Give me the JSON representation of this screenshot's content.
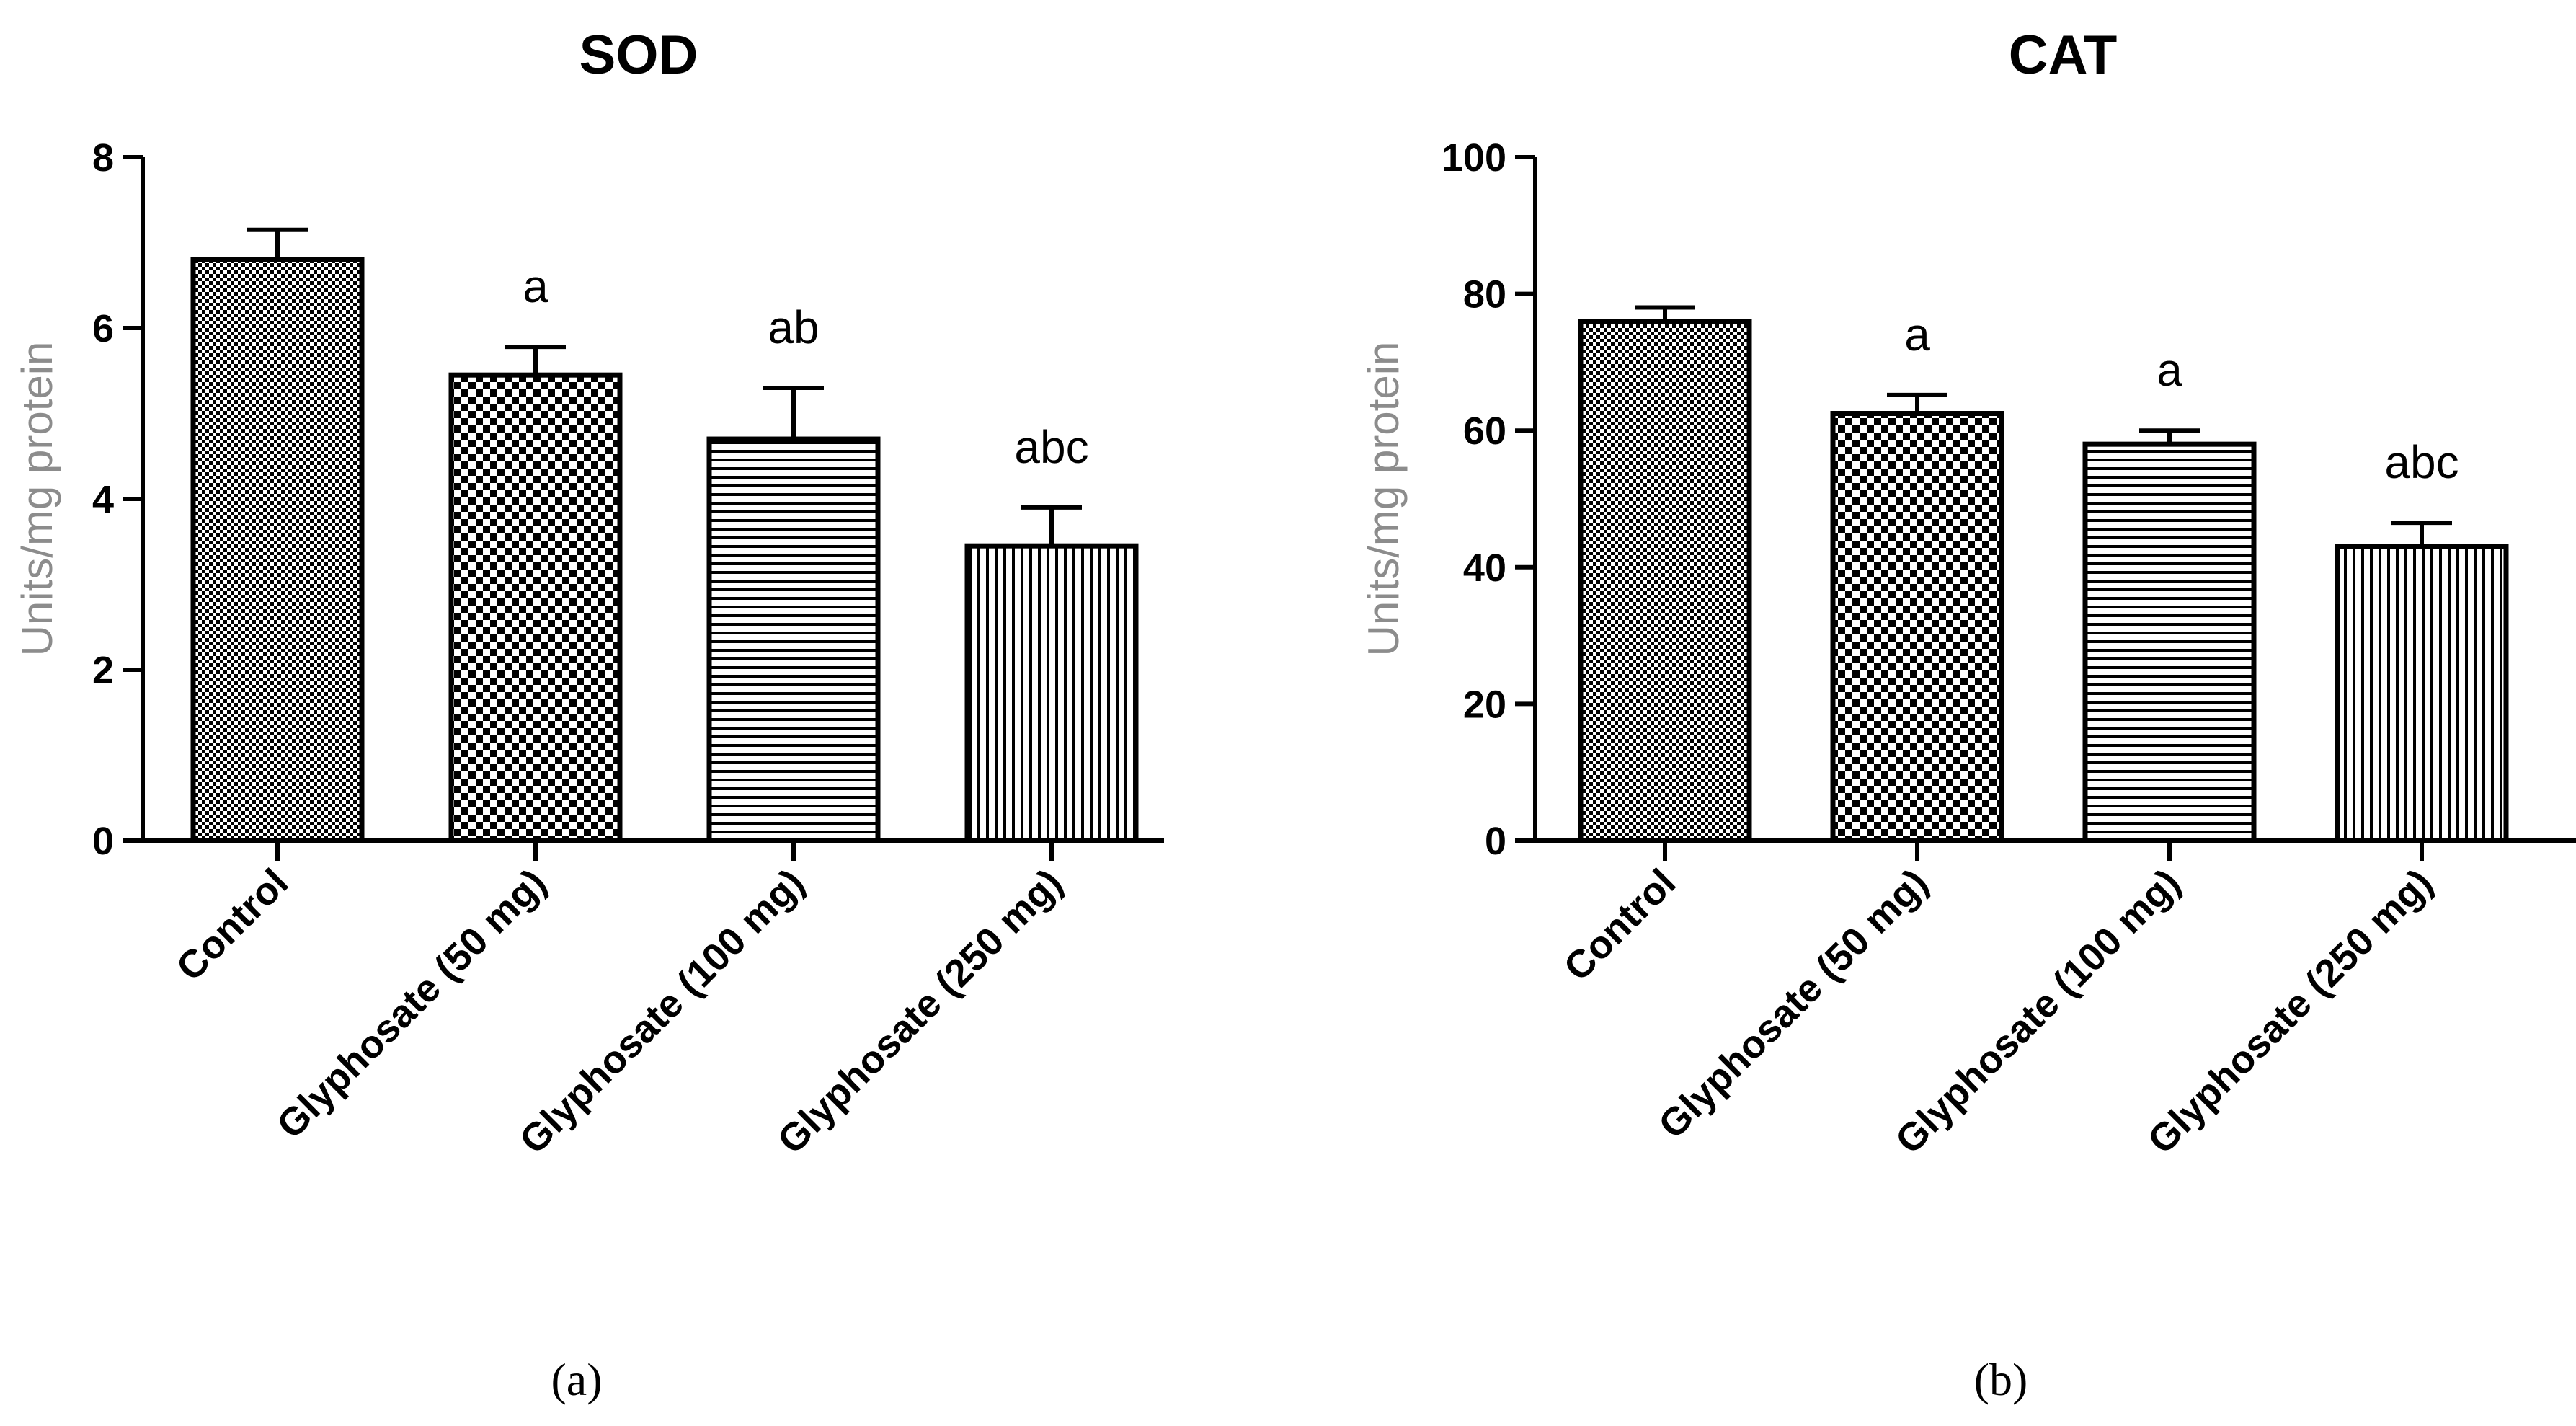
{
  "chart_data": [
    {
      "type": "bar",
      "title": "SOD",
      "ylabel": "Units/mg protein",
      "xlabel": "",
      "categories": [
        "Control",
        "Glyphosate (50 mg)",
        "Glyphosate (100 mg)",
        "Glyphosate (250 mg)"
      ],
      "values": [
        6.8,
        5.45,
        4.7,
        3.45
      ],
      "errors": [
        0.35,
        0.33,
        0.6,
        0.45
      ],
      "annotations": [
        "",
        "a",
        "ab",
        "abc"
      ],
      "patterns": [
        "fine-check",
        "checker",
        "horizontal-lines",
        "vertical-lines"
      ],
      "ylim": [
        0,
        8
      ],
      "yticks": [
        "0",
        "2",
        "4",
        "6",
        "8"
      ],
      "panel_label": "(a)",
      "grid": false
    },
    {
      "type": "bar",
      "title": "CAT",
      "ylabel": "Units/mg protein",
      "xlabel": "",
      "categories": [
        "Control",
        "Glyphosate (50 mg)",
        "Glyphosate (100 mg)",
        "Glyphosate (250 mg)"
      ],
      "values": [
        76,
        62.5,
        58,
        43
      ],
      "errors": [
        2.0,
        2.7,
        2.0,
        3.5
      ],
      "annotations": [
        "",
        "a",
        "a",
        "abc"
      ],
      "patterns": [
        "fine-check",
        "checker",
        "horizontal-lines",
        "vertical-lines"
      ],
      "ylim": [
        0,
        100
      ],
      "yticks": [
        "0",
        "20",
        "40",
        "60",
        "80",
        "100"
      ],
      "panel_label": "(b)",
      "grid": false
    }
  ],
  "colors": {
    "bar_stroke": "#000000",
    "bar_fill_base": "#ffffff",
    "axis_label": "#8c8c8c"
  }
}
